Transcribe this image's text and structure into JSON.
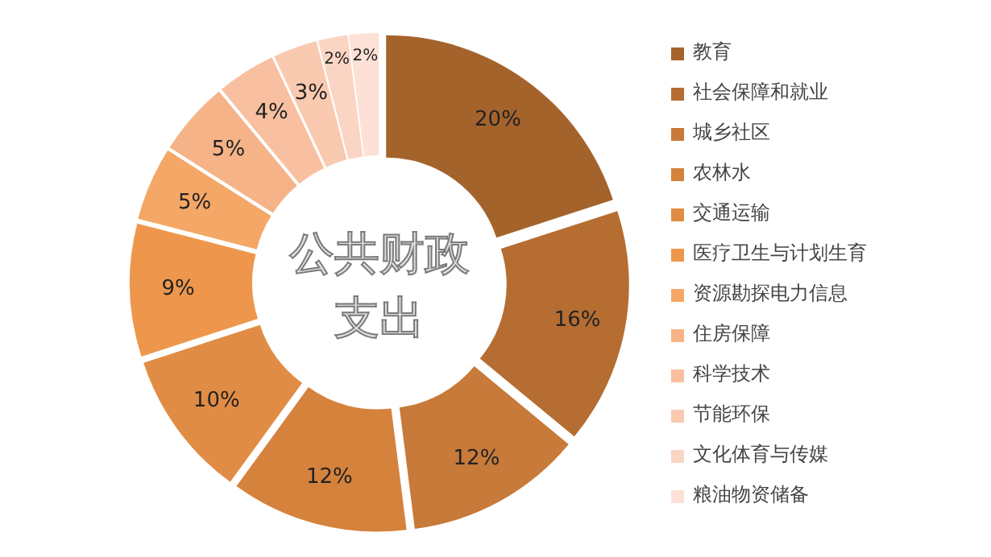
{
  "chart_data": {
    "type": "donut",
    "title": "公共财政支出",
    "categories": [
      "教育",
      "社会保障和就业",
      "城乡社区",
      "农林水",
      "交通运输",
      "医疗卫生与计划生育",
      "资源勘探电力信息",
      "住房保障",
      "科学技术",
      "节能环保",
      "文化体育与传媒",
      "粮油物资储备"
    ],
    "values": [
      20,
      16,
      12,
      12,
      10,
      9,
      5,
      5,
      4,
      3,
      2,
      2
    ],
    "value_labels": [
      "20%",
      "16%",
      "12%",
      "12%",
      "10%",
      "9%",
      "5%",
      "5%",
      "4%",
      "3%",
      "2%",
      "2%"
    ],
    "colors": [
      "#a5632c",
      "#b56d32",
      "#c77a39",
      "#d5823d",
      "#e18c44",
      "#ee974c",
      "#f4a766",
      "#f6b387",
      "#f8c0a0",
      "#f9cab0",
      "#fbd5c3",
      "#fde1d6"
    ],
    "legend": "right"
  }
}
